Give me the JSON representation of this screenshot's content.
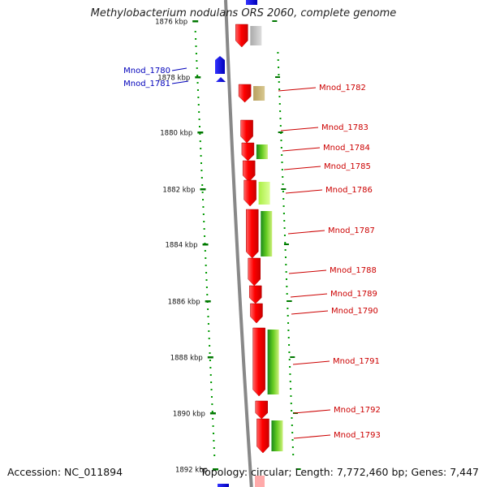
{
  "title": "Methylobacterium nodulans ORS 2060, complete genome",
  "footer": {
    "accession": "Accession: NC_011894",
    "topology": "Topology: circular; Length: 7,772,460 bp; Genes: 7,447"
  },
  "colors": {
    "forward_gene": "#ff0000",
    "reverse_gene": "#0000ee",
    "left_label": "#0000bb",
    "right_label": "#cc0000",
    "tick": "#009900",
    "backbone": "#888888"
  },
  "ruler": {
    "labels": [
      "1876 kbp",
      "1878 kbp",
      "1880 kbp",
      "1882 kbp",
      "1884 kbp",
      "1886 kbp",
      "1888 kbp",
      "1890 kbp",
      "1892 kbp"
    ]
  },
  "genes_left": [
    {
      "id": "Mnod_1780",
      "strand": "reverse"
    },
    {
      "id": "Mnod_1781",
      "strand": "reverse"
    }
  ],
  "genes_right": [
    {
      "id": "Mnod_1782",
      "strand": "forward"
    },
    {
      "id": "Mnod_1783",
      "strand": "forward"
    },
    {
      "id": "Mnod_1784",
      "strand": "forward"
    },
    {
      "id": "Mnod_1785",
      "strand": "forward"
    },
    {
      "id": "Mnod_1786",
      "strand": "forward"
    },
    {
      "id": "Mnod_1787",
      "strand": "forward"
    },
    {
      "id": "Mnod_1788",
      "strand": "forward"
    },
    {
      "id": "Mnod_1789",
      "strand": "forward"
    },
    {
      "id": "Mnod_1790",
      "strand": "forward"
    },
    {
      "id": "Mnod_1791",
      "strand": "forward"
    },
    {
      "id": "Mnod_1792",
      "strand": "forward"
    },
    {
      "id": "Mnod_1793",
      "strand": "forward"
    }
  ]
}
